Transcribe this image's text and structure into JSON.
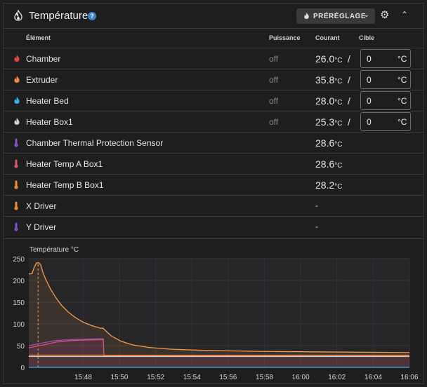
{
  "header": {
    "title": "Température",
    "help_icon": "?",
    "preset_label": "PRÉRÉGLAGE"
  },
  "columns": {
    "element": "Élément",
    "power": "Puissance",
    "current": "Courant",
    "target": "Cible"
  },
  "unit": "°C",
  "heaters": [
    {
      "name": "Chamber",
      "power": "off",
      "current": "26.0",
      "target": "0",
      "icon_color": "#e24a3b"
    },
    {
      "name": "Extruder",
      "power": "off",
      "current": "35.8",
      "target": "0",
      "icon_color": "#f28a4a"
    },
    {
      "name": "Heater Bed",
      "power": "off",
      "current": "28.0",
      "target": "0",
      "icon_color": "#3ab0e8"
    },
    {
      "name": "Heater Box1",
      "power": "off",
      "current": "25.3",
      "target": "0",
      "icon_color": "#d0d0d0"
    }
  ],
  "sensors": [
    {
      "name": "Chamber Thermal Protection Sensor",
      "current": "28.6",
      "icon_color": "#8e4fc7"
    },
    {
      "name": "Heater Temp A Box1",
      "current": "28.6",
      "icon_color": "#e2506a"
    },
    {
      "name": "Heater Temp B Box1",
      "current": "28.2",
      "icon_color": "#f08a2a"
    }
  ],
  "drivers": [
    {
      "name": "X Driver",
      "current": "-",
      "icon_color": "#f08a2a"
    },
    {
      "name": "Y Driver",
      "current": "-",
      "icon_color": "#7a4fc7"
    }
  ],
  "chart_data": {
    "type": "line",
    "title": "Température °C",
    "ylim": [
      0,
      250
    ],
    "yticks": [
      0,
      50,
      100,
      150,
      200,
      250
    ],
    "xlim": [
      15.75,
      16.1
    ],
    "xtick_labels": [
      "15:48",
      "15:50",
      "15:52",
      "15:54",
      "15:56",
      "15:58",
      "16:00",
      "16:02",
      "16:04",
      "16:06"
    ],
    "xtick_values": [
      15.8,
      15.8333,
      15.8667,
      15.9,
      15.9333,
      15.9667,
      16.0,
      16.0333,
      16.0667,
      16.1
    ],
    "series": [
      {
        "name": "Extruder",
        "color": "#f39a4e",
        "x": [
          15.75,
          15.753,
          15.755,
          15.757,
          15.759,
          15.761,
          15.763,
          15.766,
          15.77,
          15.775,
          15.78,
          15.786,
          15.792,
          15.8,
          15.808,
          15.816,
          15.8185,
          15.819,
          15.826,
          15.835,
          15.845,
          15.86,
          15.88,
          15.9,
          15.93,
          15.96,
          16.0,
          16.05,
          16.1
        ],
        "y": [
          215,
          216,
          230,
          240,
          241,
          236,
          218,
          200,
          180,
          160,
          143,
          128,
          116,
          104,
          96,
          90,
          90,
          88,
          72,
          60,
          52,
          46,
          42,
          40,
          38,
          37,
          36,
          35,
          34
        ]
      },
      {
        "name": "Extruder target",
        "color": "#f39a4e",
        "dashed": true,
        "x": [
          15.7585,
          15.7585
        ],
        "y": [
          0,
          240
        ]
      },
      {
        "name": "Heater Bed",
        "color": "#8e4fc7",
        "x": [
          15.75,
          15.76,
          15.775,
          15.79,
          15.805,
          15.8185,
          15.819,
          15.9,
          16.0,
          16.1
        ],
        "y": [
          50,
          55,
          62,
          64,
          65,
          66,
          28,
          28,
          28,
          28
        ]
      },
      {
        "name": "Chamber",
        "color": "#e2506a",
        "x": [
          15.75,
          15.76,
          15.775,
          15.79,
          15.805,
          15.8185,
          15.819,
          15.9,
          16.0,
          16.1
        ],
        "y": [
          45,
          50,
          58,
          62,
          63,
          64,
          27,
          27,
          26,
          26
        ]
      },
      {
        "name": "Heater Temp B Box1",
        "color": "#f0a040",
        "x": [
          15.75,
          15.8185,
          15.819,
          16.1
        ],
        "y": [
          28,
          28,
          28,
          28
        ]
      },
      {
        "name": "Heater Box1",
        "color": "#c8c8c8",
        "x": [
          15.75,
          16.1
        ],
        "y": [
          25,
          25
        ]
      },
      {
        "name": "Baseline",
        "color": "#3ab0e8",
        "x": [
          15.75,
          16.1
        ],
        "y": [
          0,
          0
        ]
      }
    ]
  }
}
